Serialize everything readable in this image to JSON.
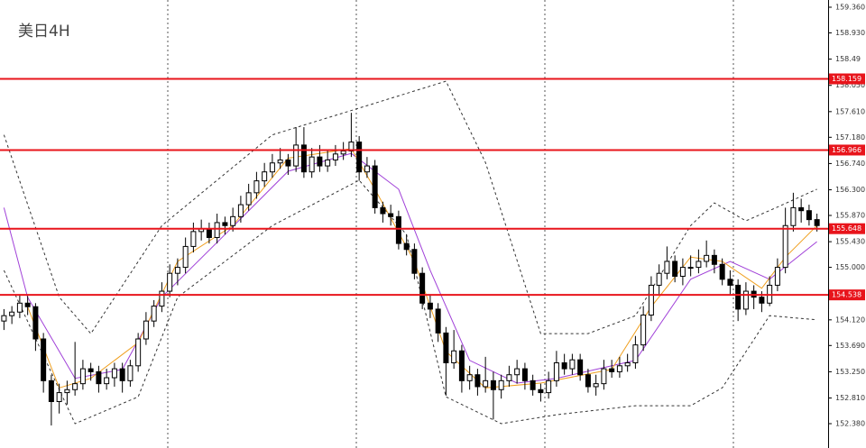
{
  "chart_data": {
    "type": "candlestick",
    "title": "美日4H",
    "ylim": [
      151.972,
      159.481
    ],
    "yticks": [
      {
        "value": 159.36,
        "label": "159.360"
      },
      {
        "value": 158.93,
        "label": "158.930"
      },
      158.49,
      {
        "value": 158.05,
        "label": "158.050"
      },
      {
        "value": 157.61,
        "label": "157.610"
      },
      {
        "value": 157.18,
        "label": "157.180"
      },
      {
        "value": 156.74,
        "label": "156.740"
      },
      {
        "value": 156.3,
        "label": "156.300"
      },
      {
        "value": 155.87,
        "label": "155.870"
      },
      {
        "value": 155.43,
        "label": "155.430"
      },
      {
        "value": 155,
        "label": "155.000"
      },
      {
        "value": 154.56,
        "label": "154.560"
      },
      {
        "value": 154.12,
        "label": "154.120"
      },
      {
        "value": 153.69,
        "label": "153.690"
      },
      {
        "value": 153.25,
        "label": "153.250"
      },
      {
        "value": 152.81,
        "label": "152.810"
      },
      {
        "value": 152.38,
        "label": "152.380"
      }
    ],
    "levels": [
      158.159,
      156.966,
      155.648,
      154.538
    ],
    "level_color": "#e8141b",
    "up_color": "#ffffff",
    "down_color": "#000000",
    "ohlc": [
      [
        154.1,
        154.3,
        153.95,
        154.19
      ],
      [
        154.19,
        154.35,
        154.05,
        154.25
      ],
      [
        154.25,
        154.55,
        154.15,
        154.4
      ],
      [
        154.4,
        154.52,
        154.2,
        154.34
      ],
      [
        154.34,
        154.4,
        153.6,
        153.8
      ],
      [
        153.8,
        153.9,
        152.9,
        153.1
      ],
      [
        153.1,
        153.2,
        152.35,
        152.75
      ],
      [
        152.75,
        153.05,
        152.55,
        152.9
      ],
      [
        152.9,
        153.1,
        152.7,
        152.95
      ],
      [
        152.95,
        153.75,
        152.85,
        153.05
      ],
      [
        153.05,
        153.45,
        152.95,
        153.3
      ],
      [
        153.3,
        153.4,
        153.1,
        153.25
      ],
      [
        153.25,
        153.35,
        152.9,
        153.05
      ],
      [
        153.05,
        153.3,
        152.95,
        153.15
      ],
      [
        153.15,
        153.4,
        153.0,
        153.3
      ],
      [
        153.3,
        153.4,
        152.9,
        153.1
      ],
      [
        153.1,
        153.45,
        153.0,
        153.35
      ],
      [
        153.35,
        153.9,
        153.25,
        153.8
      ],
      [
        153.8,
        154.25,
        153.7,
        154.1
      ],
      [
        154.1,
        154.45,
        154.0,
        154.35
      ],
      [
        154.35,
        154.75,
        154.25,
        154.6
      ],
      [
        154.6,
        155.05,
        154.5,
        154.9
      ],
      [
        154.9,
        155.15,
        154.7,
        155.0
      ],
      [
        155.0,
        155.5,
        154.9,
        155.35
      ],
      [
        155.35,
        155.75,
        155.25,
        155.6
      ],
      [
        155.6,
        155.8,
        155.45,
        155.65
      ],
      [
        155.65,
        155.75,
        155.4,
        155.5
      ],
      [
        155.5,
        155.9,
        155.4,
        155.75
      ],
      [
        155.75,
        155.85,
        155.55,
        155.7
      ],
      [
        155.7,
        156.0,
        155.6,
        155.85
      ],
      [
        155.85,
        156.2,
        155.75,
        156.05
      ],
      [
        156.05,
        156.4,
        155.95,
        156.25
      ],
      [
        156.25,
        156.6,
        156.15,
        156.45
      ],
      [
        156.45,
        156.75,
        156.35,
        156.6
      ],
      [
        156.6,
        156.9,
        156.5,
        156.75
      ],
      [
        156.75,
        157.0,
        156.65,
        156.8
      ],
      [
        156.8,
        156.9,
        156.55,
        156.7
      ],
      [
        156.7,
        157.35,
        156.6,
        157.05
      ],
      [
        157.05,
        157.35,
        156.5,
        156.6
      ],
      [
        156.6,
        157.0,
        156.5,
        156.85
      ],
      [
        156.85,
        157.05,
        156.6,
        156.7
      ],
      [
        156.7,
        156.95,
        156.6,
        156.8
      ],
      [
        156.8,
        157.05,
        156.7,
        156.9
      ],
      [
        156.9,
        157.1,
        156.8,
        156.95
      ],
      [
        156.95,
        157.59,
        156.85,
        157.1
      ],
      [
        157.1,
        157.2,
        156.45,
        156.6
      ],
      [
        156.6,
        156.85,
        156.5,
        156.7
      ],
      [
        156.7,
        156.8,
        155.9,
        156.0
      ],
      [
        156.0,
        156.1,
        155.75,
        155.9
      ],
      [
        155.9,
        156.05,
        155.7,
        155.85
      ],
      [
        155.85,
        155.95,
        155.3,
        155.4
      ],
      [
        155.4,
        155.55,
        155.2,
        155.3
      ],
      [
        155.3,
        155.4,
        154.8,
        154.9
      ],
      [
        154.9,
        155.0,
        154.3,
        154.4
      ],
      [
        154.4,
        154.55,
        154.15,
        154.3
      ],
      [
        154.3,
        154.4,
        153.75,
        153.9
      ],
      [
        153.9,
        154.0,
        152.85,
        153.4
      ],
      [
        153.4,
        153.95,
        153.3,
        153.6
      ],
      [
        153.6,
        153.7,
        152.9,
        153.1
      ],
      [
        153.1,
        153.35,
        152.95,
        153.2
      ],
      [
        153.2,
        153.3,
        152.85,
        153.0
      ],
      [
        153.0,
        153.5,
        152.9,
        153.1
      ],
      [
        153.1,
        153.25,
        152.45,
        152.95
      ],
      [
        152.95,
        153.2,
        152.8,
        153.1
      ],
      [
        153.1,
        153.35,
        153.0,
        153.2
      ],
      [
        153.2,
        153.45,
        153.05,
        153.3
      ],
      [
        153.3,
        153.4,
        152.95,
        153.1
      ],
      [
        153.1,
        153.2,
        152.85,
        152.95
      ],
      [
        152.95,
        153.05,
        152.75,
        152.9
      ],
      [
        152.9,
        153.25,
        152.8,
        153.1
      ],
      [
        153.1,
        153.6,
        153.0,
        153.4
      ],
      [
        153.4,
        153.55,
        153.2,
        153.3
      ],
      [
        153.3,
        153.55,
        153.2,
        153.45
      ],
      [
        153.45,
        153.55,
        153.1,
        153.2
      ],
      [
        153.2,
        153.3,
        152.9,
        153.0
      ],
      [
        153.0,
        153.2,
        152.85,
        153.05
      ],
      [
        153.05,
        153.45,
        152.95,
        153.3
      ],
      [
        153.3,
        153.45,
        153.15,
        153.25
      ],
      [
        153.25,
        153.5,
        153.15,
        153.35
      ],
      [
        153.35,
        153.55,
        153.25,
        153.4
      ],
      [
        153.4,
        153.85,
        153.3,
        153.7
      ],
      [
        153.7,
        154.35,
        153.6,
        154.2
      ],
      [
        154.2,
        154.85,
        154.1,
        154.7
      ],
      [
        154.7,
        155.05,
        154.55,
        154.9
      ],
      [
        154.9,
        155.35,
        154.8,
        155.1
      ],
      [
        155.1,
        155.2,
        154.75,
        154.85
      ],
      [
        154.85,
        155.15,
        154.7,
        155.0
      ],
      [
        155.0,
        155.2,
        154.85,
        155.0
      ],
      [
        155.0,
        155.3,
        154.9,
        155.1
      ],
      [
        155.1,
        155.45,
        155.0,
        155.2
      ],
      [
        155.2,
        155.3,
        154.9,
        155.05
      ],
      [
        155.05,
        155.15,
        154.7,
        154.8
      ],
      [
        154.8,
        154.95,
        154.55,
        154.7
      ],
      [
        154.7,
        154.8,
        154.1,
        154.3
      ],
      [
        154.3,
        154.75,
        154.2,
        154.6
      ],
      [
        154.6,
        154.7,
        154.3,
        154.5
      ],
      [
        154.5,
        154.6,
        154.25,
        154.4
      ],
      [
        154.4,
        154.85,
        154.35,
        154.7
      ],
      [
        154.7,
        155.15,
        154.6,
        155.0
      ],
      [
        155.0,
        156.0,
        154.9,
        155.7
      ],
      [
        155.7,
        156.25,
        155.6,
        156.0
      ],
      [
        156.0,
        156.15,
        155.75,
        155.95
      ],
      [
        155.95,
        156.05,
        155.7,
        155.8
      ],
      [
        155.8,
        155.9,
        155.6,
        155.7
      ]
    ],
    "lines": [
      {
        "color": "#333333",
        "dashed": true,
        "x": [
          0,
          7,
          11,
          20,
          34,
          45,
          56,
          61,
          68,
          74,
          80,
          87,
          90,
          94,
          98,
          103
        ],
        "values": [
          157.22,
          154.5,
          153.89,
          155.7,
          157.22,
          157.67,
          158.12,
          156.76,
          153.89,
          153.89,
          154.19,
          155.7,
          156.08,
          155.78,
          156.01,
          156.31
        ]
      },
      {
        "color": "#333333",
        "dashed": true,
        "x": [
          0,
          9,
          17,
          22,
          34,
          45,
          51,
          56,
          63,
          70,
          80,
          87,
          91,
          97,
          103
        ],
        "values": [
          154.95,
          152.38,
          152.83,
          154.5,
          155.7,
          156.46,
          155.55,
          152.83,
          152.38,
          152.53,
          152.68,
          152.68,
          152.98,
          154.19,
          154.12
        ]
      },
      {
        "color": "#a040d8",
        "dashed": false,
        "x": [
          0,
          3,
          9,
          15,
          20,
          28,
          36,
          44,
          50,
          54,
          59,
          65,
          70,
          80,
          87,
          92,
          97,
          103
        ],
        "values": [
          156.0,
          154.5,
          153.14,
          153.29,
          154.5,
          155.55,
          156.61,
          156.91,
          156.31,
          154.95,
          153.44,
          153.06,
          153.14,
          153.44,
          154.8,
          155.1,
          154.8,
          155.43
        ]
      },
      {
        "color": "#f0a020",
        "dashed": false,
        "x": [
          3,
          7,
          11,
          17,
          22,
          29,
          36,
          44,
          47,
          52,
          56,
          61,
          68,
          77,
          82,
          87,
          91,
          96,
          99,
          103
        ],
        "values": [
          154.34,
          152.98,
          153.14,
          153.74,
          155.1,
          155.7,
          156.83,
          156.99,
          156.31,
          155.1,
          153.59,
          152.98,
          153.06,
          153.29,
          154.34,
          155.17,
          155.1,
          154.65,
          155.17,
          155.7
        ]
      }
    ]
  }
}
